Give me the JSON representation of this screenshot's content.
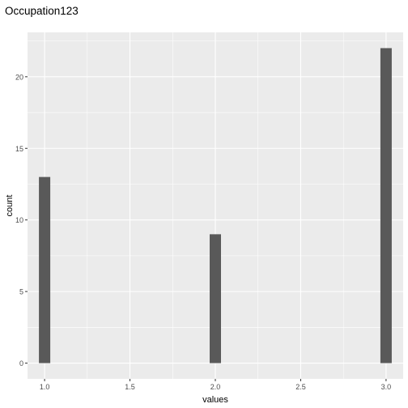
{
  "chart_data": {
    "type": "bar",
    "title": "Occupation123",
    "xlabel": "values",
    "ylabel": "count",
    "x": [
      1,
      2,
      3
    ],
    "values": [
      13,
      9,
      22
    ],
    "xlim": [
      0.9,
      3.1
    ],
    "ylim": [
      -1.1,
      23.1
    ],
    "x_ticks": [
      1.0,
      1.5,
      2.0,
      2.5,
      3.0
    ],
    "x_tick_labels": [
      "1.0",
      "1.5",
      "2.0",
      "2.5",
      "3.0"
    ],
    "y_ticks": [
      0,
      5,
      10,
      15,
      20
    ],
    "y_tick_labels": [
      "0",
      "5",
      "10",
      "15",
      "20"
    ],
    "grid": true,
    "colors": {
      "bar": "#595959",
      "panel": "#ebebeb",
      "grid": "#ffffff"
    }
  }
}
